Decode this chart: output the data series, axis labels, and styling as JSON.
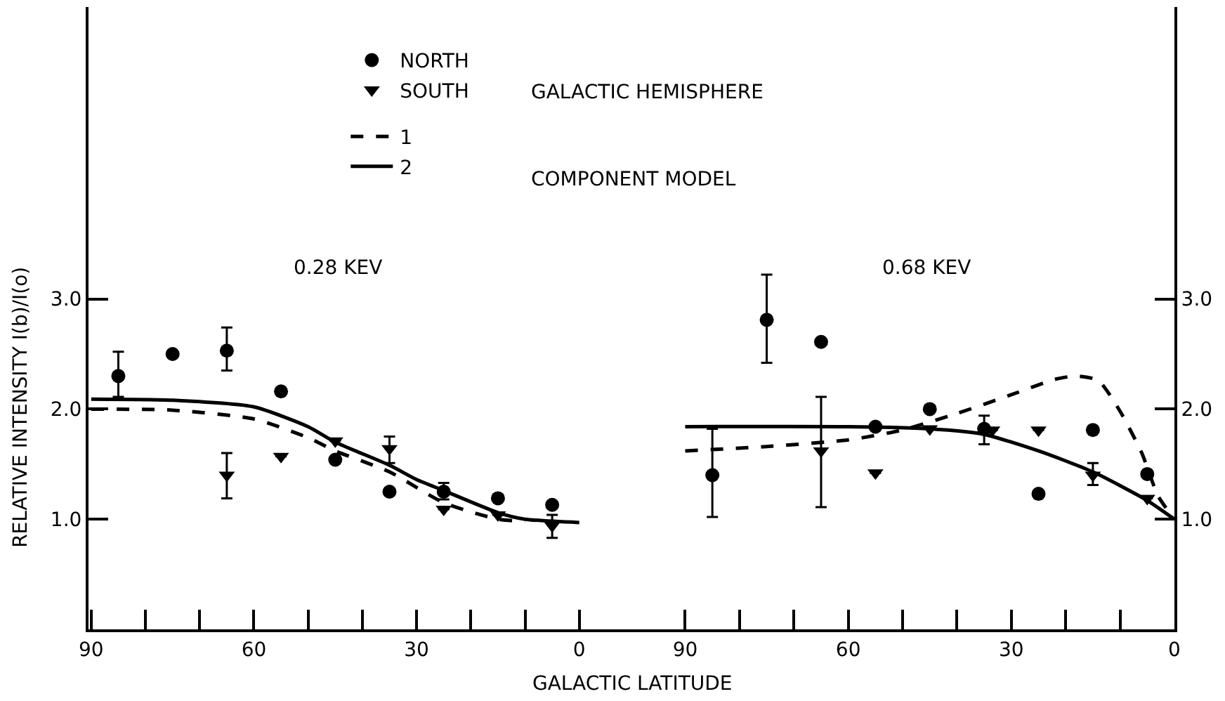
{
  "chart_data": [
    {
      "type": "scatter",
      "xlabel": "GALACTIC LATITUDE",
      "ylabel": "RELATIVE INTENSITY I(b)/I(o)",
      "annotations": [
        "0.28 KEV",
        "GALACTIC HEMISPHERE",
        "COMPONENT MODEL"
      ],
      "legend": "top",
      "xlim": [
        90.5,
        -9.5
      ],
      "ylim": [
        0,
        5.65
      ],
      "xticks": [
        90,
        {
          "value": 80,
          "label": null
        },
        {
          "value": 70,
          "label": null
        },
        60,
        {
          "value": 50,
          "label": null
        },
        {
          "value": 40,
          "label": null
        },
        30,
        {
          "value": 20,
          "label": null
        },
        {
          "value": 10,
          "label": null
        },
        0
      ],
      "yticks": [
        {
          "value": 1,
          "label": "1.0"
        },
        {
          "value": 2,
          "label": "2.0"
        },
        {
          "value": 3,
          "label": "3.0"
        }
      ],
      "series": [
        {
          "name": "NORTH",
          "marker": "circle",
          "color": "#000000",
          "x": [
            85,
            75,
            65,
            55,
            45,
            35,
            25,
            15,
            5
          ],
          "values": [
            2.3,
            2.5,
            2.53,
            2.16,
            1.54,
            1.25,
            1.25,
            1.19,
            1.13
          ],
          "errors": [
            [
              2.11,
              2.52
            ],
            null,
            [
              2.35,
              2.74
            ],
            null,
            null,
            null,
            [
              1.18,
              1.33
            ],
            null,
            null
          ]
        },
        {
          "name": "SOUTH",
          "marker": "triangle",
          "color": "#000000",
          "x": [
            65,
            55,
            45,
            35,
            25,
            15,
            5
          ],
          "values": [
            1.4,
            1.57,
            1.71,
            1.64,
            1.09,
            1.04,
            0.94
          ],
          "errors": [
            [
              1.19,
              1.6
            ],
            null,
            null,
            [
              1.51,
              1.75
            ],
            null,
            null,
            [
              0.83,
              1.04
            ]
          ]
        },
        {
          "name": "1",
          "type": "line",
          "line_style": "dashed",
          "color": "#000000",
          "x": [
            90,
            75,
            60,
            50,
            45,
            35,
            25,
            15,
            10
          ],
          "values": [
            2.0,
            1.99,
            1.91,
            1.74,
            1.62,
            1.43,
            1.15,
            1.0,
            0.98
          ]
        },
        {
          "name": "2",
          "type": "line",
          "line_style": "solid",
          "color": "#000000",
          "x": [
            90,
            75,
            60,
            50,
            45,
            35,
            30,
            25,
            15,
            10,
            0
          ],
          "values": [
            2.09,
            2.08,
            2.02,
            1.84,
            1.7,
            1.49,
            1.36,
            1.26,
            1.06,
            1.0,
            0.97
          ]
        }
      ]
    },
    {
      "type": "scatter",
      "annotations": [
        "0.68 KEV"
      ],
      "xlim": [
        100,
        0
      ],
      "ylim": [
        0,
        5.65
      ],
      "xticks": [
        90,
        {
          "value": 80,
          "label": null
        },
        {
          "value": 70,
          "label": null
        },
        60,
        {
          "value": 50,
          "label": null
        },
        {
          "value": 40,
          "label": null
        },
        30,
        {
          "value": 20,
          "label": null
        },
        {
          "value": 10,
          "label": null
        },
        0
      ],
      "yticks": [
        {
          "value": 1,
          "label": "1.0"
        },
        {
          "value": 2,
          "label": "2.0"
        },
        {
          "value": 3,
          "label": "3.0"
        }
      ],
      "series": [
        {
          "marker": "circle",
          "color": "#000000",
          "x": [
            85,
            75,
            65,
            55,
            45,
            35,
            25,
            15,
            5
          ],
          "values": [
            1.4,
            2.81,
            2.61,
            1.84,
            2.0,
            1.82,
            1.23,
            1.81,
            1.41
          ],
          "errors": [
            [
              1.02,
              1.82
            ],
            [
              2.42,
              3.22
            ],
            null,
            null,
            null,
            [
              1.68,
              1.94
            ],
            null,
            null,
            null
          ]
        },
        {
          "marker": "triangle",
          "color": "#000000",
          "x": [
            65,
            55,
            45,
            33.5,
            25,
            15,
            5
          ],
          "values": [
            1.62,
            1.42,
            1.82,
            1.81,
            1.81,
            1.4,
            1.19
          ],
          "errors": [
            [
              1.11,
              2.11
            ],
            null,
            null,
            null,
            null,
            [
              1.31,
              1.51
            ],
            null
          ]
        },
        {
          "type": "line",
          "line_style": "dashed",
          "color": "#000000",
          "x": [
            90,
            75,
            60,
            50,
            40,
            30,
            22,
            18,
            14,
            10,
            6,
            3,
            0
          ],
          "values": [
            1.62,
            1.66,
            1.72,
            1.81,
            1.96,
            2.13,
            2.27,
            2.3,
            2.26,
            1.98,
            1.6,
            1.21,
            1.0
          ]
        },
        {
          "type": "line",
          "line_style": "solid",
          "color": "#000000",
          "x": [
            90,
            60,
            45,
            35,
            25,
            15,
            5,
            0
          ],
          "values": [
            1.84,
            1.84,
            1.82,
            1.77,
            1.62,
            1.43,
            1.17,
            1.0
          ]
        }
      ]
    }
  ]
}
